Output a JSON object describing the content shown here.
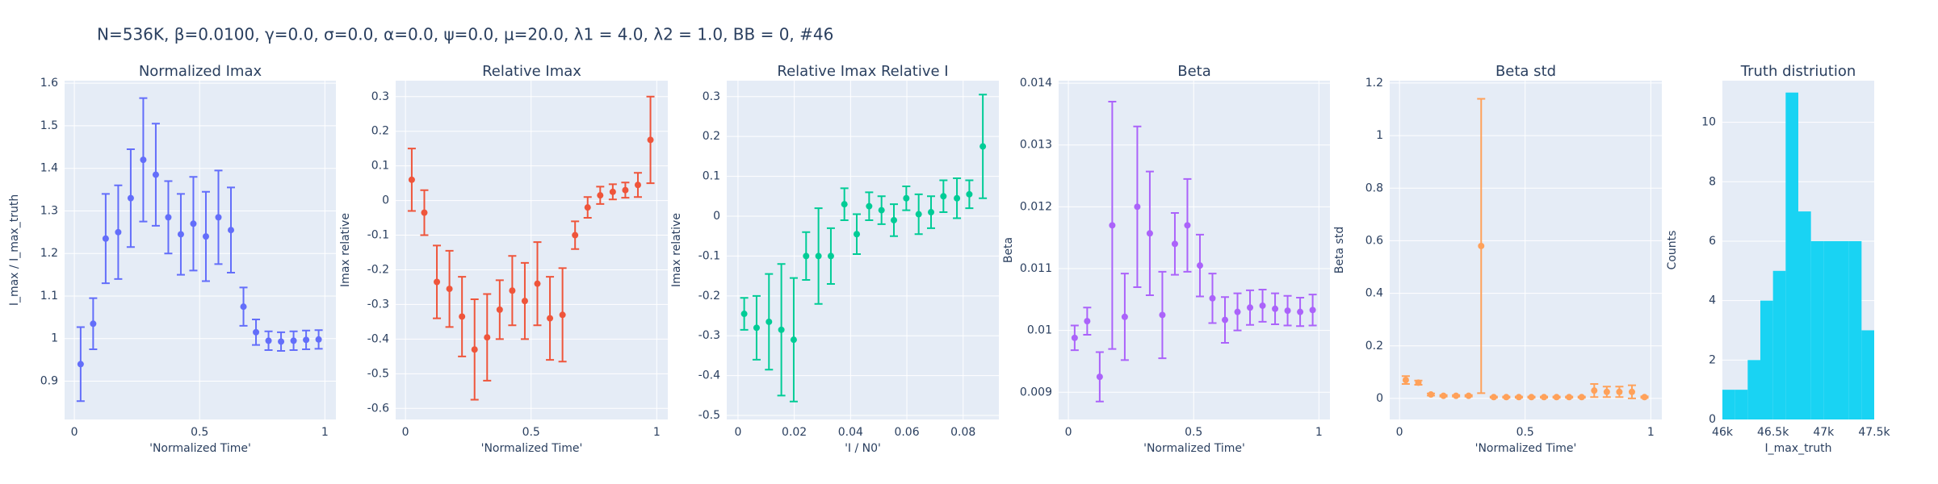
{
  "title": "N=536K, β=0.0100, γ=0.0, σ=0.0,  α=0.0, ψ=0.0, μ=20.0, λ1 = 4.0, λ2 = 1.0, BB = 0, #46",
  "chart_data": [
    {
      "type": "scatter",
      "title": "Normalized Imax",
      "x_label": "'Normalized Time'",
      "y_label": "I_max / I_max_truth",
      "color": "#636efa",
      "x": [
        0.025,
        0.075,
        0.125,
        0.175,
        0.225,
        0.275,
        0.325,
        0.375,
        0.425,
        0.475,
        0.525,
        0.575,
        0.625,
        0.675,
        0.725,
        0.775,
        0.825,
        0.875,
        0.925,
        0.975
      ],
      "values": [
        0.94,
        1.035,
        1.235,
        1.25,
        1.33,
        1.42,
        1.385,
        1.285,
        1.245,
        1.27,
        1.24,
        1.285,
        1.255,
        1.075,
        1.015,
        0.995,
        0.993,
        0.995,
        0.997,
        0.998
      ],
      "errors": [
        0.087,
        0.06,
        0.105,
        0.11,
        0.115,
        0.145,
        0.12,
        0.085,
        0.095,
        0.11,
        0.105,
        0.11,
        0.1,
        0.045,
        0.03,
        0.022,
        0.022,
        0.022,
        0.022,
        0.022
      ],
      "xlim": [
        -0.039,
        1.044
      ],
      "ylim": [
        0.81,
        1.606
      ],
      "xticks": [
        0,
        0.5,
        1
      ],
      "yticks": [
        0.9,
        1,
        1.1,
        1.2,
        1.3,
        1.4,
        1.5,
        1.6
      ],
      "grid": true
    },
    {
      "type": "scatter",
      "title": "Relative Imax",
      "x_label": "'Normalized Time'",
      "y_label": "Imax relative",
      "color": "#ef553b",
      "x": [
        0.025,
        0.075,
        0.125,
        0.175,
        0.225,
        0.275,
        0.325,
        0.375,
        0.425,
        0.475,
        0.525,
        0.575,
        0.625,
        0.675,
        0.725,
        0.775,
        0.825,
        0.875,
        0.925,
        0.975
      ],
      "values": [
        0.06,
        -0.035,
        -0.235,
        -0.255,
        -0.335,
        -0.43,
        -0.395,
        -0.315,
        -0.26,
        -0.29,
        -0.24,
        -0.34,
        -0.33,
        -0.1,
        -0.02,
        0.015,
        0.025,
        0.03,
        0.045,
        0.175
      ],
      "errors": [
        0.09,
        0.065,
        0.105,
        0.11,
        0.115,
        0.145,
        0.125,
        0.085,
        0.1,
        0.11,
        0.12,
        0.12,
        0.135,
        0.04,
        0.03,
        0.025,
        0.022,
        0.022,
        0.035,
        0.125
      ],
      "xlim": [
        -0.039,
        1.044
      ],
      "ylim": [
        -0.632,
        0.346
      ],
      "xticks": [
        0,
        0.5,
        1
      ],
      "yticks": [
        -0.6,
        -0.5,
        -0.4,
        -0.3,
        -0.2,
        -0.1,
        0,
        0.1,
        0.2,
        0.3
      ],
      "grid": true
    },
    {
      "type": "scatter",
      "title": "Relative Imax Relative I",
      "x_label": "'I / N0'",
      "y_label": "Imax relative",
      "color": "#00cc96",
      "x": [
        0.0022,
        0.0066,
        0.011,
        0.0154,
        0.0198,
        0.0242,
        0.0286,
        0.033,
        0.0378,
        0.0422,
        0.0466,
        0.051,
        0.0554,
        0.0598,
        0.0642,
        0.0686,
        0.073,
        0.0778,
        0.0822,
        0.087
      ],
      "values": [
        -0.245,
        -0.28,
        -0.265,
        -0.285,
        -0.31,
        -0.1,
        -0.1,
        -0.1,
        0.03,
        -0.045,
        0.025,
        0.015,
        -0.01,
        0.045,
        0.005,
        0.01,
        0.05,
        0.045,
        0.055,
        0.175
      ],
      "errors": [
        0.04,
        0.08,
        0.12,
        0.165,
        0.155,
        0.06,
        0.12,
        0.07,
        0.04,
        0.05,
        0.035,
        0.035,
        0.04,
        0.03,
        0.05,
        0.04,
        0.04,
        0.05,
        0.035,
        0.13
      ],
      "xlim": [
        -0.004,
        0.0927
      ],
      "ylim": [
        -0.51,
        0.34
      ],
      "xticks": [
        0,
        0.02,
        0.04,
        0.06,
        0.08
      ],
      "yticks": [
        -0.5,
        -0.4,
        -0.3,
        -0.2,
        -0.1,
        0,
        0.1,
        0.2,
        0.3
      ],
      "grid": true
    },
    {
      "type": "scatter",
      "title": "Beta",
      "x_label": "'Normalized Time'",
      "y_label": "Beta",
      "color": "#ab63fa",
      "x": [
        0.025,
        0.075,
        0.125,
        0.175,
        0.225,
        0.275,
        0.325,
        0.375,
        0.425,
        0.475,
        0.525,
        0.575,
        0.625,
        0.675,
        0.725,
        0.775,
        0.825,
        0.875,
        0.925,
        0.975
      ],
      "values": [
        0.00988,
        0.01015,
        0.00925,
        0.0117,
        0.01022,
        0.012,
        0.01157,
        0.01025,
        0.0114,
        0.0117,
        0.01105,
        0.01052,
        0.01017,
        0.0103,
        0.01037,
        0.0104,
        0.01035,
        0.01032,
        0.0103,
        0.01033
      ],
      "errors": [
        0.0002,
        0.00022,
        0.0004,
        0.002,
        0.0007,
        0.0013,
        0.001,
        0.0007,
        0.0005,
        0.00075,
        0.0005,
        0.0004,
        0.00037,
        0.0003,
        0.00028,
        0.00026,
        0.00025,
        0.00024,
        0.00023,
        0.00025
      ],
      "xlim": [
        -0.039,
        1.044
      ],
      "ylim": [
        0.00856,
        0.01404
      ],
      "xticks": [
        0,
        0.5,
        1
      ],
      "yticks": [
        0.009,
        0.01,
        0.011,
        0.012,
        0.013,
        0.014
      ],
      "grid": true
    },
    {
      "type": "scatter",
      "title": "Beta std",
      "x_label": "'Normalized Time'",
      "y_label": "Beta std",
      "color": "#ffa15a",
      "x": [
        0.025,
        0.075,
        0.125,
        0.175,
        0.225,
        0.275,
        0.325,
        0.375,
        0.425,
        0.475,
        0.525,
        0.575,
        0.625,
        0.675,
        0.725,
        0.775,
        0.825,
        0.875,
        0.925,
        0.975
      ],
      "values": [
        0.07,
        0.06,
        0.015,
        0.01,
        0.01,
        0.01,
        0.58,
        0.005,
        0.005,
        0.005,
        0.005,
        0.005,
        0.005,
        0.005,
        0.005,
        0.03,
        0.025,
        0.025,
        0.025,
        0.005
      ],
      "errors": [
        0.015,
        0.008,
        0.004,
        0.003,
        0.003,
        0.003,
        0.56,
        0.002,
        0.002,
        0.002,
        0.002,
        0.002,
        0.002,
        0.002,
        0.002,
        0.025,
        0.02,
        0.02,
        0.025,
        0.003
      ],
      "xlim": [
        -0.039,
        1.044
      ],
      "ylim": [
        -0.08,
        1.209
      ],
      "xticks": [
        0,
        0.5,
        1
      ],
      "yticks": [
        0,
        0.2,
        0.4,
        0.6,
        0.8,
        1,
        1.2
      ],
      "grid": true
    },
    {
      "type": "histogram",
      "title": "Truth distriution",
      "x_label": "I_max_truth",
      "y_label": "Counts",
      "color": "#19d3f3",
      "bins": [
        46000,
        46125,
        46250,
        46375,
        46500,
        46625,
        46750,
        46875,
        47000,
        47125,
        47250,
        47375,
        47500
      ],
      "counts": [
        1,
        1,
        2,
        4,
        5,
        11,
        7,
        6,
        6,
        6,
        6,
        3
      ],
      "xlim": [
        46000,
        47500
      ],
      "ylim": [
        0,
        11.4
      ],
      "xticks": [
        {
          "value": 46000,
          "label": "46k"
        },
        {
          "value": 46500,
          "label": "46.5k"
        },
        {
          "value": 47000,
          "label": "47k"
        },
        {
          "value": 47500,
          "label": "47.5k"
        }
      ],
      "yticks": [
        0,
        2,
        4,
        6,
        8,
        10
      ],
      "grid": true
    }
  ]
}
